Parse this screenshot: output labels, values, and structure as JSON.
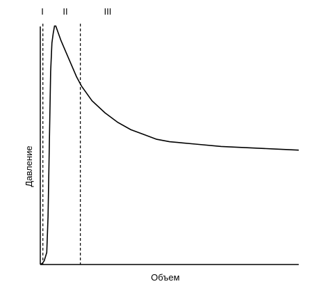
{
  "chart_data": {
    "type": "line",
    "xlabel": "Объем",
    "ylabel": "Давление",
    "phase_labels": [
      "I",
      "II",
      "III"
    ],
    "phase_boundaries_x": [
      1.0,
      15.5
    ],
    "xlim": [
      0,
      100
    ],
    "ylim": [
      0,
      100
    ],
    "series": [
      {
        "x": [
          0,
          0.8,
          1.5,
          2.5,
          3.0,
          3.5,
          4.0,
          4.5,
          5.0,
          5.5,
          6.0,
          7.0,
          8.0,
          10,
          12,
          14,
          16,
          18,
          20,
          25,
          30,
          35,
          40,
          45,
          50,
          55,
          60,
          70,
          80,
          90,
          100
        ],
        "y": [
          0,
          0.5,
          1.5,
          5,
          20,
          50,
          80,
          92,
          96,
          99,
          99,
          96,
          93,
          88,
          83,
          78,
          74,
          71,
          68,
          63,
          59,
          56,
          54,
          52,
          51,
          50.5,
          50,
          49,
          48.5,
          48,
          47.5
        ]
      }
    ]
  },
  "axis_labels": {
    "x": "Объем",
    "y": "Давление"
  }
}
